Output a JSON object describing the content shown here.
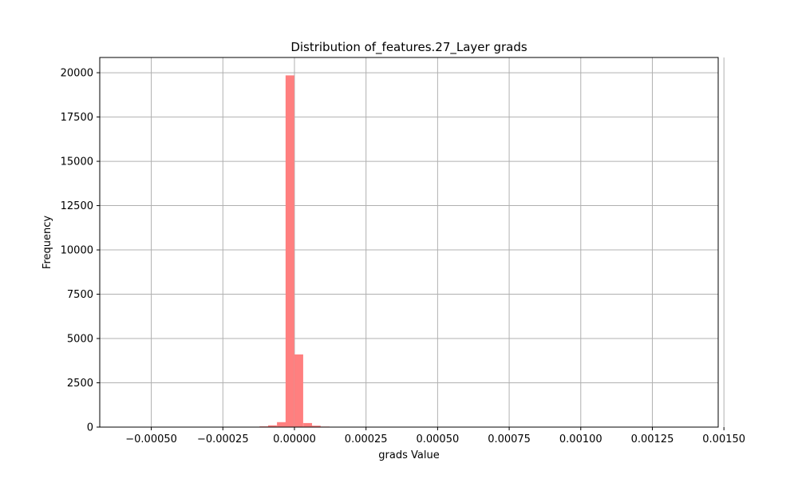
{
  "chart_data": {
    "type": "bar",
    "title": "Distribution of_features.27_Layer grads",
    "xlabel": "grads Value",
    "ylabel": "Frequency",
    "xlim": [
      -0.00068,
      0.00148
    ],
    "ylim": [
      0,
      20860
    ],
    "bar_width": 3.05e-05,
    "x_ticks": [
      -0.0005,
      -0.00025,
      0.0,
      0.00025,
      0.0005,
      0.00075,
      0.001,
      0.00125,
      0.0015
    ],
    "x_tick_labels": [
      "−0.00050",
      "−0.00025",
      "0.00000",
      "0.00025",
      "0.00050",
      "0.00075",
      "0.00100",
      "0.00125",
      "0.00150"
    ],
    "y_ticks": [
      0,
      2500,
      5000,
      7500,
      10000,
      12500,
      15000,
      17500,
      20000
    ],
    "y_tick_labels": [
      "0",
      "2500",
      "5000",
      "7500",
      "10000",
      "12500",
      "15000",
      "17500",
      "20000"
    ],
    "series": [
      {
        "color": "#ff7f7f",
        "bins": [
          {
            "x": -0.000153,
            "value": 15
          },
          {
            "x": -0.000122,
            "value": 40
          },
          {
            "x": -9.2e-05,
            "value": 100
          },
          {
            "x": -6.1e-05,
            "value": 280
          },
          {
            "x": -3.1e-05,
            "value": 19850
          },
          {
            "x": 0.0,
            "value": 4100
          },
          {
            "x": 3.1e-05,
            "value": 230
          },
          {
            "x": 6.1e-05,
            "value": 80
          },
          {
            "x": 9.2e-05,
            "value": 30
          },
          {
            "x": 0.000122,
            "value": 10
          }
        ]
      }
    ],
    "grid": true,
    "colors": {
      "bar": "#ff7f7f",
      "grid": "#b0b0b0",
      "axis": "#000000"
    }
  }
}
